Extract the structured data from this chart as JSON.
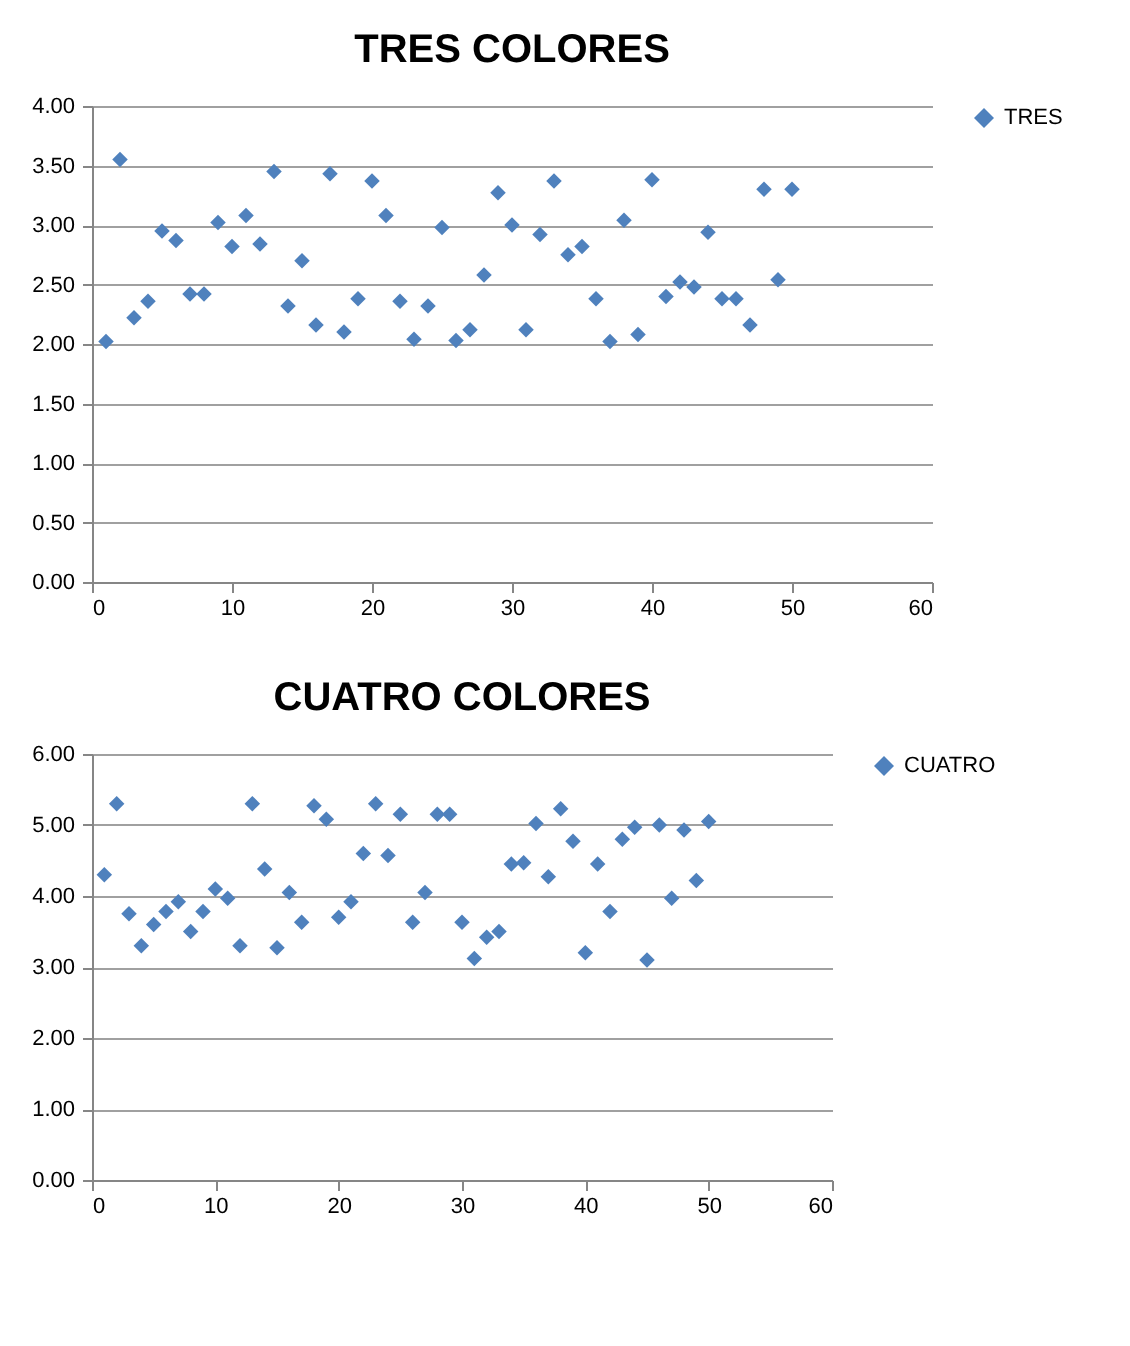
{
  "chart_data": [
    {
      "type": "scatter",
      "title": "TRES COLORES",
      "x": [
        1,
        2,
        3,
        4,
        5,
        6,
        7,
        8,
        9,
        10,
        11,
        12,
        13,
        14,
        15,
        16,
        17,
        18,
        19,
        20,
        21,
        22,
        23,
        24,
        25,
        26,
        27,
        28,
        29,
        30,
        31,
        32,
        33,
        34,
        35,
        36,
        37,
        38,
        39,
        40,
        41,
        42,
        43,
        44,
        45,
        46,
        47,
        48,
        49,
        50
      ],
      "series": [
        {
          "name": "TRES",
          "color": "#4f81bd",
          "values": [
            2.02,
            3.55,
            2.22,
            2.36,
            2.95,
            2.87,
            2.42,
            2.42,
            3.02,
            2.82,
            3.08,
            2.84,
            3.45,
            2.32,
            2.7,
            2.16,
            3.43,
            2.1,
            2.38,
            3.37,
            3.08,
            2.36,
            2.04,
            2.32,
            2.98,
            2.03,
            2.12,
            2.58,
            3.27,
            3.0,
            2.12,
            2.92,
            3.37,
            2.75,
            2.82,
            2.38,
            2.02,
            3.04,
            2.08,
            3.38,
            2.4,
            2.52,
            2.48,
            2.94,
            2.38,
            2.38,
            2.16,
            3.3,
            2.54,
            3.3
          ]
        }
      ],
      "xlim": [
        0,
        60
      ],
      "xticks": [
        0,
        10,
        20,
        30,
        40,
        50,
        60
      ],
      "ylim": [
        0,
        4
      ],
      "yticks": [
        {
          "value": 0,
          "label": "0.00"
        },
        {
          "value": 0.5,
          "label": "0.50"
        },
        {
          "value": 1,
          "label": "1.00"
        },
        {
          "value": 1.5,
          "label": "1.50"
        },
        {
          "value": 2,
          "label": "2.00"
        },
        {
          "value": 2.5,
          "label": "2.50"
        },
        {
          "value": 3,
          "label": "3.00"
        },
        {
          "value": 3.5,
          "label": "3.50"
        },
        {
          "value": 4,
          "label": "4.00"
        }
      ],
      "grid": "y",
      "legend": "right",
      "marker": "diamond"
    },
    {
      "type": "scatter",
      "title": "CUATRO COLORES",
      "x": [
        1,
        2,
        3,
        4,
        5,
        6,
        7,
        8,
        9,
        10,
        11,
        12,
        13,
        14,
        15,
        16,
        17,
        18,
        19,
        20,
        21,
        22,
        23,
        24,
        25,
        26,
        27,
        28,
        29,
        30,
        31,
        32,
        33,
        34,
        35,
        36,
        37,
        38,
        39,
        40,
        41,
        42,
        43,
        44,
        45,
        46,
        47,
        48,
        49,
        50
      ],
      "series": [
        {
          "name": "CUATRO",
          "color": "#4f81bd",
          "values": [
            4.3,
            5.3,
            3.75,
            3.3,
            3.6,
            3.78,
            3.92,
            3.5,
            3.78,
            4.1,
            3.97,
            3.3,
            5.3,
            4.38,
            3.27,
            4.05,
            3.63,
            5.27,
            5.08,
            3.7,
            3.92,
            4.6,
            5.3,
            4.57,
            5.15,
            3.63,
            4.05,
            5.15,
            5.15,
            3.63,
            3.12,
            3.42,
            3.5,
            4.45,
            4.47,
            5.02,
            4.27,
            5.23,
            4.77,
            3.2,
            4.45,
            3.78,
            4.8,
            4.97,
            3.1,
            5.0,
            3.97,
            4.93,
            4.22,
            5.05
          ]
        }
      ],
      "xlim": [
        0,
        60
      ],
      "xticks": [
        0,
        10,
        20,
        30,
        40,
        50,
        60
      ],
      "ylim": [
        0,
        6
      ],
      "yticks": [
        {
          "value": 0,
          "label": "0.00"
        },
        {
          "value": 1,
          "label": "1.00"
        },
        {
          "value": 2,
          "label": "2.00"
        },
        {
          "value": 3,
          "label": "3.00"
        },
        {
          "value": 4,
          "label": "4.00"
        },
        {
          "value": 5,
          "label": "5.00"
        },
        {
          "value": 6,
          "label": "6.00"
        }
      ],
      "grid": "y",
      "legend": "right",
      "marker": "diamond"
    }
  ]
}
